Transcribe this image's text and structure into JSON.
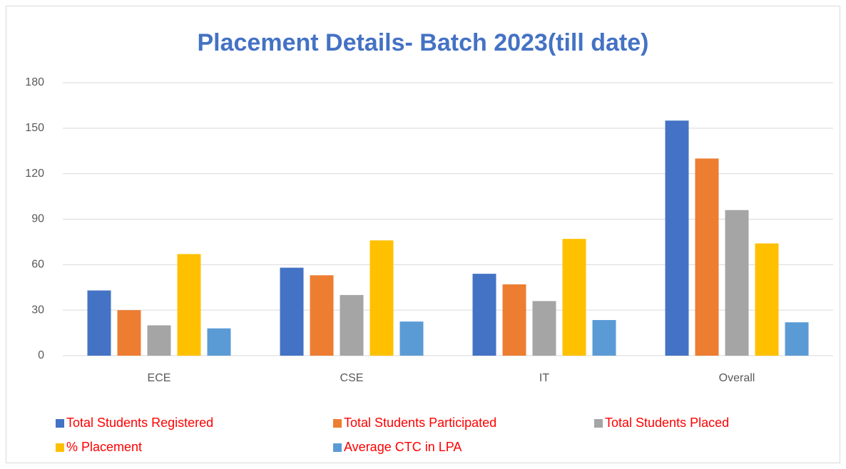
{
  "chart_data": {
    "type": "bar",
    "title": "Placement Details- Batch 2023(till date)",
    "categories": [
      "ECE",
      "CSE",
      "IT",
      "Overall"
    ],
    "series": [
      {
        "name": "Total Students Registered",
        "color": "#4472c4",
        "values": [
          43,
          58,
          54,
          155
        ]
      },
      {
        "name": "Total Students Participated",
        "color": "#ed7d31",
        "values": [
          30,
          53,
          47,
          130
        ]
      },
      {
        "name": "Total Students Placed",
        "color": "#a5a5a5",
        "values": [
          20,
          40,
          36,
          96
        ]
      },
      {
        "name": "% Placement",
        "color": "#ffc000",
        "values": [
          67,
          76,
          77,
          74
        ]
      },
      {
        "name": "Average CTC in LPA",
        "color": "#5b9bd5",
        "values": [
          18,
          22.5,
          23.5,
          22
        ]
      }
    ],
    "ylim": [
      0,
      180
    ],
    "yticks": [
      0,
      30,
      60,
      90,
      120,
      150,
      180
    ],
    "grid": true,
    "legend": "bottom"
  }
}
